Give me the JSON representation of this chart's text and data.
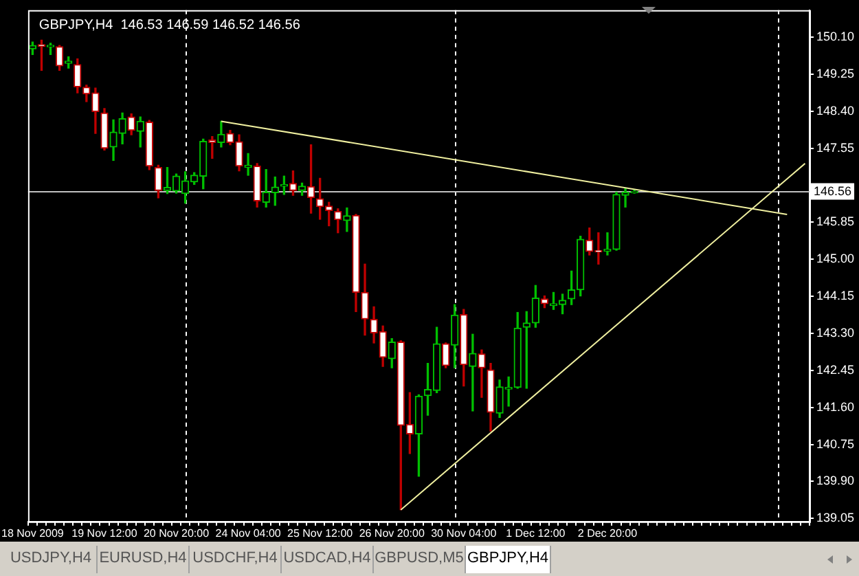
{
  "chart_data": {
    "type": "candlestick",
    "title": "GBPJPY,H4  146.53 146.59 146.52 146.56",
    "categories": [
      "18 Nov 2009",
      null,
      null,
      null,
      null,
      null,
      null,
      null,
      "19 Nov 12:00",
      null,
      null,
      null,
      null,
      null,
      null,
      null,
      "20 Nov 20:00",
      null,
      null,
      null,
      null,
      null,
      null,
      null,
      "24 Nov 04:00",
      null,
      null,
      null,
      null,
      null,
      null,
      null,
      "25 Nov 12:00",
      null,
      null,
      null,
      null,
      null,
      null,
      null,
      "26 Nov 20:00",
      null,
      null,
      null,
      null,
      null,
      null,
      null,
      "30 Nov 04:00",
      null,
      null,
      null,
      null,
      null,
      null,
      null,
      "1 Dec 12:00",
      null,
      null,
      null,
      null,
      null,
      null,
      null,
      "2 Dec 20:00",
      null,
      null,
      null,
      null,
      null,
      null,
      null,
      null,
      null,
      null,
      null,
      null,
      null,
      null,
      null,
      null,
      null,
      null,
      null,
      null,
      null,
      null
    ],
    "ohlc": [
      [
        149.83,
        149.99,
        149.7,
        149.91
      ],
      [
        149.93,
        150.03,
        149.34,
        149.89
      ],
      [
        149.88,
        149.96,
        149.7,
        149.91
      ],
      [
        149.88,
        149.91,
        149.34,
        149.44
      ],
      [
        149.5,
        149.65,
        149.39,
        149.55
      ],
      [
        149.47,
        149.6,
        148.82,
        148.96
      ],
      [
        148.95,
        149.0,
        148.62,
        148.8
      ],
      [
        148.82,
        148.93,
        147.89,
        148.39
      ],
      [
        148.36,
        148.46,
        147.51,
        147.55
      ],
      [
        147.58,
        148.2,
        147.27,
        147.92
      ],
      [
        147.89,
        148.36,
        147.65,
        148.23
      ],
      [
        148.27,
        148.34,
        147.86,
        147.96
      ],
      [
        147.94,
        148.27,
        147.58,
        148.17
      ],
      [
        148.15,
        148.19,
        147.06,
        147.14
      ],
      [
        147.11,
        147.16,
        146.41,
        146.58
      ],
      [
        146.58,
        147.11,
        146.51,
        146.65
      ],
      [
        146.57,
        146.96,
        146.52,
        146.91
      ],
      [
        146.51,
        147.01,
        146.29,
        146.8
      ],
      [
        146.78,
        146.99,
        146.72,
        146.93
      ],
      [
        146.91,
        147.76,
        146.62,
        147.71
      ],
      [
        147.74,
        147.82,
        147.32,
        147.68
      ],
      [
        147.68,
        148.17,
        147.58,
        147.87
      ],
      [
        147.89,
        147.96,
        147.63,
        147.68
      ],
      [
        147.7,
        147.86,
        147.03,
        147.14
      ],
      [
        147.11,
        147.43,
        146.93,
        147.16
      ],
      [
        147.14,
        147.2,
        146.2,
        146.34
      ],
      [
        146.31,
        147.06,
        146.2,
        146.54
      ],
      [
        146.53,
        146.89,
        146.24,
        146.66
      ],
      [
        146.68,
        146.91,
        146.49,
        146.72
      ],
      [
        146.74,
        147.03,
        146.47,
        146.58
      ],
      [
        146.58,
        146.75,
        146.47,
        146.68
      ],
      [
        146.67,
        147.63,
        146.06,
        146.42
      ],
      [
        146.39,
        146.86,
        145.92,
        146.21
      ],
      [
        146.22,
        146.31,
        145.77,
        146.12
      ],
      [
        146.1,
        146.16,
        145.61,
        145.91
      ],
      [
        145.89,
        146.18,
        145.64,
        146.0
      ],
      [
        146.01,
        146.03,
        143.8,
        144.24
      ],
      [
        144.24,
        144.89,
        143.26,
        143.63
      ],
      [
        143.62,
        143.91,
        143.08,
        143.31
      ],
      [
        143.34,
        143.47,
        142.54,
        142.75
      ],
      [
        142.72,
        143.18,
        142.51,
        143.1
      ],
      [
        143.1,
        143.13,
        139.25,
        141.19
      ],
      [
        141.21,
        141.94,
        140.54,
        140.99
      ],
      [
        140.99,
        141.89,
        140.02,
        141.86
      ],
      [
        141.87,
        142.61,
        141.42,
        142.01
      ],
      [
        141.99,
        143.44,
        141.94,
        143.06
      ],
      [
        143.06,
        143.08,
        142.51,
        142.56
      ],
      [
        143.03,
        143.96,
        142.51,
        143.72
      ],
      [
        143.73,
        143.85,
        142.09,
        142.58
      ],
      [
        142.54,
        143.28,
        141.52,
        142.84
      ],
      [
        142.83,
        142.92,
        141.83,
        142.51
      ],
      [
        142.46,
        142.61,
        141.06,
        141.49
      ],
      [
        141.47,
        142.23,
        141.37,
        142.07
      ],
      [
        142.02,
        142.3,
        141.63,
        142.06
      ],
      [
        142.06,
        143.78,
        142.04,
        143.42
      ],
      [
        143.44,
        143.8,
        142.04,
        143.54
      ],
      [
        143.54,
        144.4,
        143.44,
        144.11
      ],
      [
        144.09,
        144.16,
        143.89,
        143.98
      ],
      [
        143.94,
        144.24,
        143.85,
        143.98
      ],
      [
        143.96,
        144.2,
        143.75,
        144.06
      ],
      [
        144.09,
        144.73,
        143.96,
        144.3
      ],
      [
        144.3,
        145.53,
        144.16,
        145.46
      ],
      [
        145.44,
        145.72,
        145.1,
        145.18
      ],
      [
        145.2,
        145.61,
        144.89,
        145.17
      ],
      [
        145.19,
        145.61,
        145.1,
        145.23
      ],
      [
        145.23,
        146.54,
        145.21,
        146.49
      ],
      [
        146.47,
        146.62,
        146.2,
        146.54
      ],
      [
        146.53,
        146.59,
        146.52,
        146.56
      ],
      null,
      null,
      null,
      null,
      null,
      null,
      null,
      null,
      null,
      null,
      null,
      null,
      null,
      null,
      null,
      null,
      null,
      null,
      null
    ],
    "colors": [
      "#00c000",
      "#c00000",
      "#00c000",
      "#c00000",
      "#00c000",
      "#c00000",
      "#c00000",
      "#c00000",
      "#c00000",
      "#00c000",
      "#00c000",
      "#c00000",
      "#00c000",
      "#c00000",
      "#c00000",
      "#00c000",
      "#00c000",
      "#00c000",
      "#00c000",
      "#00c000",
      "#c00000",
      "#00c000",
      "#c00000",
      "#c00000",
      "#00c000",
      "#c00000",
      "#00c000",
      "#00c000",
      "#00c000",
      "#c00000",
      "#00c000",
      "#c00000",
      "#c00000",
      "#c00000",
      "#c00000",
      "#00c000",
      "#c00000",
      "#c00000",
      "#c00000",
      "#c00000",
      "#00c000",
      "#c00000",
      "#c00000",
      "#00c000",
      "#00c000",
      "#00c000",
      "#c00000",
      "#00c000",
      "#c00000",
      "#00c000",
      "#c00000",
      "#c00000",
      "#00c000",
      "#00c000",
      "#00c000",
      "#00c000",
      "#00c000",
      "#c00000",
      "#00c000",
      "#00c000",
      "#00c000",
      "#00c000",
      "#c00000",
      "#c00000",
      "#00c000",
      "#00c000",
      "#00c000",
      "#00c000",
      null,
      null,
      null,
      null,
      null,
      null,
      null,
      null,
      null,
      null,
      null,
      null,
      null,
      null,
      null,
      null,
      null,
      null,
      null
    ],
    "series": [
      {
        "type": "line",
        "color": "#f0f0a0",
        "values": [
          null,
          null,
          null,
          null,
          null,
          null,
          null,
          null,
          null,
          null,
          null,
          null,
          null,
          null,
          null,
          null,
          null,
          null,
          null,
          null,
          null,
          148.17,
          null,
          null,
          null,
          null,
          null,
          null,
          null,
          null,
          null,
          null,
          null,
          null,
          null,
          null,
          null,
          null,
          null,
          null,
          null,
          null,
          null,
          null,
          null,
          null,
          null,
          null,
          null,
          null,
          null,
          null,
          null,
          null,
          null,
          null,
          null,
          null,
          null,
          null,
          null,
          null,
          null,
          null,
          null,
          null,
          null,
          null,
          null,
          null,
          null,
          null,
          null,
          null,
          null,
          null,
          null,
          null,
          null,
          null,
          null,
          null,
          null,
          null,
          146.03,
          null,
          null
        ]
      },
      {
        "type": "line",
        "color": "#f0f0a0",
        "values": [
          null,
          null,
          null,
          null,
          null,
          null,
          null,
          null,
          null,
          null,
          null,
          null,
          null,
          null,
          null,
          null,
          null,
          null,
          null,
          null,
          null,
          null,
          null,
          null,
          null,
          null,
          null,
          null,
          null,
          null,
          null,
          null,
          null,
          null,
          null,
          null,
          null,
          null,
          null,
          null,
          null,
          139.25,
          null,
          null,
          null,
          null,
          null,
          null,
          null,
          null,
          null,
          null,
          null,
          null,
          null,
          null,
          null,
          null,
          null,
          null,
          null,
          null,
          null,
          null,
          null,
          null,
          null,
          null,
          null,
          null,
          null,
          null,
          null,
          null,
          null,
          null,
          null,
          null,
          null,
          null,
          null,
          null,
          null,
          null,
          null,
          null,
          147.2
        ]
      }
    ],
    "ylim": [
      138.98,
      150.72
    ],
    "yticks": [
      {
        "value": 150.1,
        "label": "150.10"
      },
      149.25,
      {
        "value": 148.4,
        "label": "148.40"
      },
      147.55,
      {
        "value": 146.7,
        "label": null
      },
      145.85,
      {
        "value": 145,
        "label": "145.00"
      },
      144.15,
      {
        "value": 143.3,
        "label": "143.30"
      },
      142.45,
      {
        "value": 141.6,
        "label": "141.60"
      },
      140.75,
      {
        "value": 139.9,
        "label": "139.90"
      },
      139.05
    ],
    "ref_lines": [
      {
        "axis": "y",
        "value": 146.56,
        "label": "146.56",
        "color": "#c0c0c0"
      }
    ],
    "annotations": [
      "USDJPY,H4",
      "EURUSD,H4",
      "USDCHF,H4",
      "USDCAD,H4",
      "GBPUSD,M5",
      "GBPJPY,H4"
    ],
    "grid": false,
    "legend": false,
    "marker": "none",
    "line_style": "solid"
  }
}
